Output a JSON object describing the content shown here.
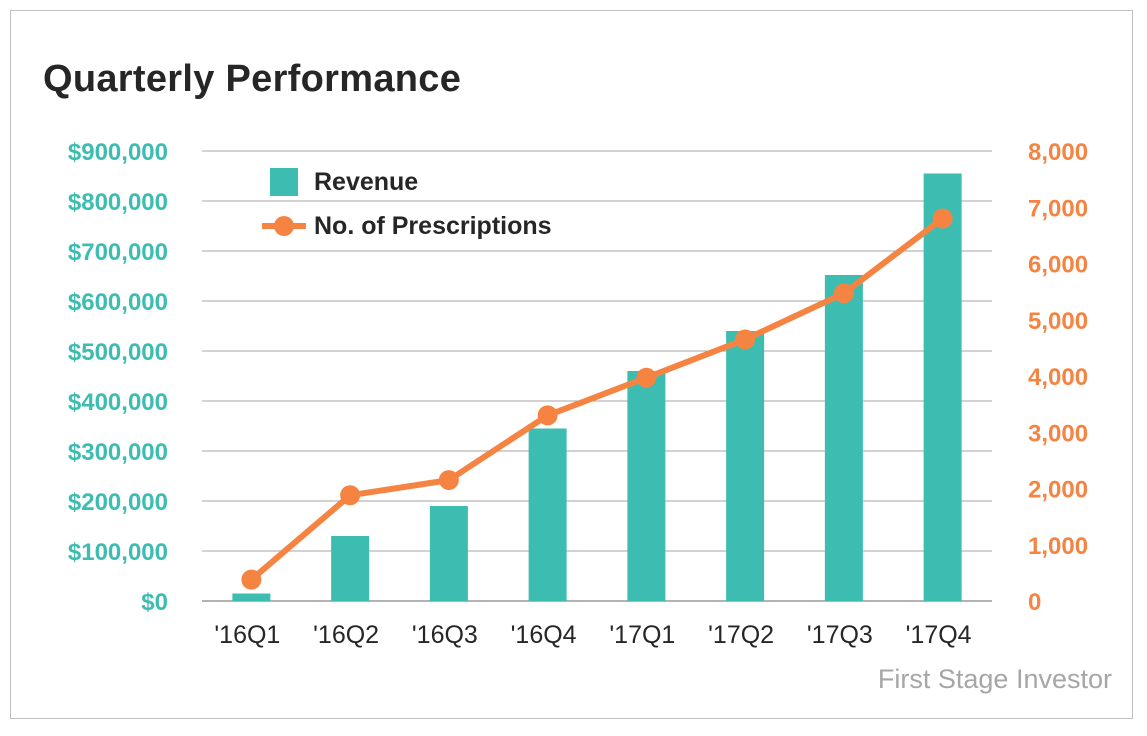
{
  "chart_data": {
    "type": "bar",
    "title": "Quarterly Performance",
    "categories": [
      "'16Q1",
      "'16Q2",
      "'16Q3",
      "'16Q4",
      "'17Q1",
      "'17Q2",
      "'17Q3",
      "'17Q4"
    ],
    "series": [
      {
        "name": "Revenue",
        "type": "bar",
        "axis": "left",
        "color": "#3dbdb1",
        "values": [
          15000,
          130000,
          190000,
          345000,
          460000,
          540000,
          652000,
          855000
        ]
      },
      {
        "name": "No. of Prescriptions",
        "type": "line",
        "axis": "right",
        "color": "#f58442",
        "values": [
          380,
          1880,
          2150,
          3300,
          3970,
          4650,
          5470,
          6800
        ]
      }
    ],
    "y_left": {
      "range": [
        0,
        900000
      ],
      "ticks": [
        0,
        100000,
        200000,
        300000,
        400000,
        500000,
        600000,
        700000,
        800000,
        900000
      ],
      "tick_labels": [
        "$0",
        "$100,000",
        "$200,000",
        "$300,000",
        "$400,000",
        "$500,000",
        "$600,000",
        "$700,000",
        "$800,000",
        "$900,000"
      ],
      "color": "#3dbdb1"
    },
    "y_right": {
      "range": [
        0,
        8000
      ],
      "ticks": [
        0,
        1000,
        2000,
        3000,
        4000,
        5000,
        6000,
        7000,
        8000
      ],
      "tick_labels": [
        "0",
        "1,000",
        "2,000",
        "3,000",
        "4,000",
        "5,000",
        "6,000",
        "7,000",
        "8,000"
      ],
      "color": "#f58442"
    },
    "grid": true,
    "legend": "top-left",
    "source": "First Stage Investor"
  }
}
